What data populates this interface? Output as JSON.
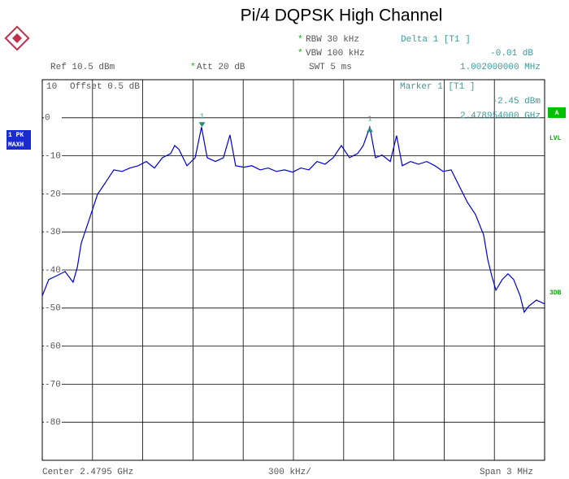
{
  "chart_data": {
    "type": "line",
    "title": "Pi/4 DQPSK High Channel",
    "star": "*",
    "settings": {
      "rbw": "RBW 30 kHz",
      "vbw": "VBW 100 kHz",
      "swt": "SWT 5 ms",
      "ref": "Ref 10.5 dBm",
      "att": "Att 20 dB",
      "offset": "Offset 0.5 dB",
      "center": "Center 2.4795 GHz",
      "div": "300 kHz/",
      "span": "Span 3 MHz",
      "trace_mode": [
        "1 PK",
        "MAXH"
      ],
      "side": [
        "A",
        "LVL",
        "3DB"
      ]
    },
    "marker": {
      "title": "Marker 1 [T1 ]",
      "label": "1",
      "x": 2.478954,
      "y": -2.45,
      "y_label": "-2.45 dBm",
      "x_label": "2.478954000 GHz"
    },
    "delta": {
      "title": "Delta 1 [T1 ]",
      "label": "1",
      "dx": 0.001002,
      "dy": -0.01,
      "dy_label": "-0.01 dB",
      "dx_label": "1.002000000 MHz"
    },
    "xlim": [
      2.478,
      2.481
    ],
    "ylim": [
      -90,
      10
    ],
    "yticks": [
      0,
      -10,
      -20,
      -30,
      -40,
      -50,
      -60,
      -70,
      -80
    ],
    "grid": true,
    "x": [
      2.478,
      2.478039,
      2.478087,
      2.478136,
      2.478184,
      2.478209,
      2.478233,
      2.478282,
      2.47833,
      2.478379,
      2.478427,
      2.478476,
      2.478524,
      2.478573,
      2.478621,
      2.47867,
      2.478718,
      2.478767,
      2.478791,
      2.478816,
      2.478864,
      2.478913,
      2.478951,
      2.478985,
      2.479034,
      2.479082,
      2.479121,
      2.479155,
      2.479204,
      2.479252,
      2.479301,
      2.479349,
      2.479398,
      2.479447,
      2.479495,
      2.479544,
      2.479592,
      2.479641,
      2.479689,
      2.479738,
      2.479786,
      2.479835,
      2.479883,
      2.479917,
      2.479956,
      2.47999,
      2.480029,
      2.480078,
      2.480116,
      2.48015,
      2.480199,
      2.480247,
      2.480296,
      2.480345,
      2.480393,
      2.480442,
      2.48049,
      2.480539,
      2.480587,
      2.480636,
      2.48066,
      2.480684,
      2.480709,
      2.480747,
      2.480781,
      2.480815,
      2.480854,
      2.480878,
      2.480903,
      2.480951,
      2.481
    ],
    "series": [
      {
        "color": "#0000cc",
        "values": [
          -46.8,
          -42.5,
          -41.5,
          -40.4,
          -43.2,
          -39.3,
          -32.9,
          -26.5,
          -20.1,
          -16.9,
          -13.7,
          -14.1,
          -13.2,
          -12.6,
          -11.5,
          -13.2,
          -10.5,
          -9.4,
          -7.3,
          -8.3,
          -12.6,
          -10.5,
          -2.45,
          -10.5,
          -11.5,
          -10.5,
          -4.5,
          -12.6,
          -13,
          -12.6,
          -13.7,
          -13.2,
          -14.1,
          -13.7,
          -14.3,
          -13.2,
          -13.7,
          -11.5,
          -12.2,
          -10.5,
          -7.3,
          -10.5,
          -9.4,
          -7.3,
          -2.46,
          -10.5,
          -9.8,
          -11.5,
          -4.7,
          -12.6,
          -11.5,
          -12.2,
          -11.5,
          -12.6,
          -14.1,
          -13.7,
          -17.9,
          -22.2,
          -25.4,
          -30.8,
          -37.2,
          -41.5,
          -45.3,
          -42.5,
          -41,
          -42.5,
          -46.8,
          -51.1,
          -49.6,
          -47.9,
          -48.9
        ]
      }
    ]
  }
}
